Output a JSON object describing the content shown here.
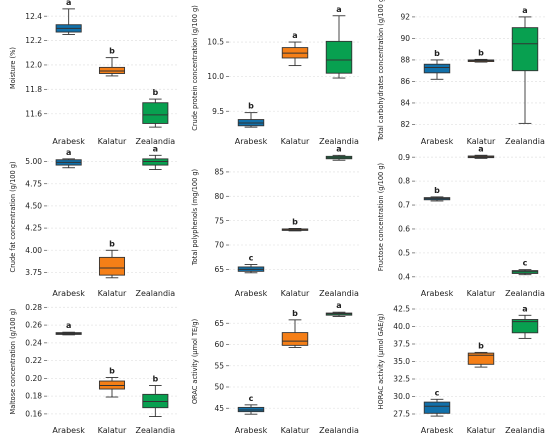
{
  "colors": {
    "Arabesk": "#1170aa",
    "Kalatur": "#f57f17",
    "Zealandia": "#08a050"
  },
  "chart_data": [
    {
      "type": "box",
      "ylabel": "Moisture (%)",
      "ylim": [
        11.45,
        12.5
      ],
      "yticks": [
        11.6,
        11.8,
        12.0,
        12.2,
        12.4
      ],
      "yticklabels": [
        "11.6",
        "11.8",
        "12.0",
        "12.2",
        "12.4"
      ],
      "categories": [
        "Arabesk",
        "Kalatur",
        "Zealandia"
      ],
      "boxes": [
        {
          "min": 12.25,
          "q1": 12.27,
          "median": 12.3,
          "q3": 12.33,
          "max": 12.46,
          "letter": "a"
        },
        {
          "min": 11.91,
          "q1": 11.93,
          "median": 11.95,
          "q3": 11.98,
          "max": 12.06,
          "letter": "b"
        },
        {
          "min": 11.49,
          "q1": 11.52,
          "median": 11.59,
          "q3": 11.69,
          "max": 11.72,
          "letter": "b"
        }
      ]
    },
    {
      "type": "box",
      "ylabel": "Crude protein concentration (g/100 g)",
      "ylim": [
        9.2,
        11.05
      ],
      "yticks": [
        9.5,
        10.0,
        10.5
      ],
      "yticklabels": [
        "9.5",
        "10.0",
        "10.5"
      ],
      "categories": [
        "Arabesk",
        "Kalatur",
        "Zealandia"
      ],
      "boxes": [
        {
          "min": 9.27,
          "q1": 9.29,
          "median": 9.33,
          "q3": 9.38,
          "max": 9.48,
          "letter": "b"
        },
        {
          "min": 10.16,
          "q1": 10.27,
          "median": 10.34,
          "q3": 10.42,
          "max": 10.5,
          "letter": "a"
        },
        {
          "min": 9.98,
          "q1": 10.05,
          "median": 10.24,
          "q3": 10.51,
          "max": 10.88,
          "letter": "a"
        }
      ]
    },
    {
      "type": "box",
      "ylabel": "Total carbohydrates concentration (g/100 g)",
      "ylim": [
        81.3,
        93.2
      ],
      "yticks": [
        82,
        84,
        86,
        88,
        90,
        92
      ],
      "yticklabels": [
        "82",
        "84",
        "86",
        "88",
        "90",
        "92"
      ],
      "categories": [
        "Arabesk",
        "Kalatur",
        "Zealandia"
      ],
      "boxes": [
        {
          "min": 86.2,
          "q1": 86.8,
          "median": 87.3,
          "q3": 87.6,
          "max": 88.0,
          "letter": "b"
        },
        {
          "min": 87.8,
          "q1": 87.85,
          "median": 87.95,
          "q3": 88.0,
          "max": 88.05,
          "letter": "b"
        },
        {
          "min": 82.1,
          "q1": 87.0,
          "median": 89.5,
          "q3": 91.0,
          "max": 92.0,
          "letter": "a"
        }
      ]
    },
    {
      "type": "box",
      "ylabel": "Crude fat concentration (g/100 g)",
      "ylim": [
        3.62,
        5.13
      ],
      "yticks": [
        3.75,
        4.0,
        4.25,
        4.5,
        4.75,
        5.0
      ],
      "yticklabels": [
        "3.75",
        "4.00",
        "4.25",
        "4.50",
        "4.75",
        "5.00"
      ],
      "categories": [
        "Arabesk",
        "Kalatur",
        "Zealandia"
      ],
      "boxes": [
        {
          "min": 4.93,
          "q1": 4.96,
          "median": 4.99,
          "q3": 5.02,
          "max": 5.03,
          "letter": "a"
        },
        {
          "min": 3.69,
          "q1": 3.72,
          "median": 3.8,
          "q3": 3.92,
          "max": 4.0,
          "letter": "b"
        },
        {
          "min": 4.91,
          "q1": 4.96,
          "median": 5.0,
          "q3": 5.03,
          "max": 5.07,
          "letter": "a"
        }
      ]
    },
    {
      "type": "box",
      "ylabel": "Total polyphenols (mg/100 g)",
      "ylim": [
        62.0,
        89.5
      ],
      "yticks": [
        65,
        70,
        75,
        80,
        85
      ],
      "yticklabels": [
        "65",
        "70",
        "75",
        "80",
        "85"
      ],
      "categories": [
        "Arabesk",
        "Kalatur",
        "Zealandia"
      ],
      "boxes": [
        {
          "min": 64.3,
          "q1": 64.6,
          "median": 65.0,
          "q3": 65.5,
          "max": 66.0,
          "letter": "c"
        },
        {
          "min": 72.9,
          "q1": 73.0,
          "median": 73.1,
          "q3": 73.3,
          "max": 73.4,
          "letter": "b"
        },
        {
          "min": 87.4,
          "q1": 87.7,
          "median": 87.9,
          "q3": 88.2,
          "max": 88.4,
          "letter": "a"
        }
      ]
    },
    {
      "type": "box",
      "ylabel": "Fructose concentration (g/100 g)",
      "ylim": [
        0.37,
        0.93
      ],
      "yticks": [
        0.4,
        0.5,
        0.6,
        0.7,
        0.8,
        0.9
      ],
      "yticklabels": [
        "0.4",
        "0.5",
        "0.6",
        "0.7",
        "0.8",
        "0.9"
      ],
      "categories": [
        "Arabesk",
        "Kalatur",
        "Zealandia"
      ],
      "boxes": [
        {
          "min": 0.717,
          "q1": 0.722,
          "median": 0.727,
          "q3": 0.731,
          "max": 0.734,
          "letter": "b"
        },
        {
          "min": 0.895,
          "q1": 0.898,
          "median": 0.901,
          "q3": 0.905,
          "max": 0.908,
          "letter": "a"
        },
        {
          "min": 0.409,
          "q1": 0.414,
          "median": 0.421,
          "q3": 0.426,
          "max": 0.43,
          "letter": "c"
        }
      ]
    },
    {
      "type": "box",
      "ylabel": "Maltose concentration (g/100 g)",
      "ylim": [
        0.152,
        0.286
      ],
      "yticks": [
        0.16,
        0.18,
        0.2,
        0.22,
        0.24,
        0.26,
        0.28
      ],
      "yticklabels": [
        "0.16",
        "0.18",
        "0.20",
        "0.22",
        "0.24",
        "0.26",
        "0.28"
      ],
      "categories": [
        "Arabesk",
        "Kalatur",
        "Zealandia"
      ],
      "boxes": [
        {
          "min": 0.249,
          "q1": 0.2495,
          "median": 0.2505,
          "q3": 0.2515,
          "max": 0.252,
          "letter": "a"
        },
        {
          "min": 0.179,
          "q1": 0.188,
          "median": 0.192,
          "q3": 0.197,
          "max": 0.201,
          "letter": "b"
        },
        {
          "min": 0.157,
          "q1": 0.167,
          "median": 0.174,
          "q3": 0.182,
          "max": 0.192,
          "letter": "b"
        }
      ]
    },
    {
      "type": "box",
      "ylabel": "ORAC activity (μmol TE/g)",
      "ylim": [
        42.0,
        70.0
      ],
      "yticks": [
        45,
        50,
        55,
        60,
        65
      ],
      "yticklabels": [
        "45",
        "50",
        "55",
        "60",
        "65"
      ],
      "categories": [
        "Arabesk",
        "Kalatur",
        "Zealandia"
      ],
      "boxes": [
        {
          "min": 43.6,
          "q1": 44.2,
          "median": 44.6,
          "q3": 45.2,
          "max": 45.8,
          "letter": "c"
        },
        {
          "min": 59.3,
          "q1": 59.8,
          "median": 60.8,
          "q3": 62.8,
          "max": 65.8,
          "letter": "b"
        },
        {
          "min": 66.6,
          "q1": 66.9,
          "median": 67.2,
          "q3": 67.4,
          "max": 67.6,
          "letter": "a"
        }
      ]
    },
    {
      "type": "box",
      "ylabel": "HORAC activity (μmol GAE/g)",
      "ylim": [
        26.5,
        43.5
      ],
      "yticks": [
        27.5,
        30.0,
        32.5,
        35.0,
        37.5,
        40.0,
        42.5
      ],
      "yticklabels": [
        "27.5",
        "30.0",
        "32.5",
        "35.0",
        "37.5",
        "40.0",
        "42.5"
      ],
      "categories": [
        "Arabesk",
        "Kalatur",
        "Zealandia"
      ],
      "boxes": [
        {
          "min": 27.2,
          "q1": 27.6,
          "median": 28.6,
          "q3": 29.2,
          "max": 29.6,
          "letter": "c"
        },
        {
          "min": 34.2,
          "q1": 34.6,
          "median": 35.9,
          "q3": 36.2,
          "max": 36.3,
          "letter": "b"
        },
        {
          "min": 38.3,
          "q1": 39.1,
          "median": 40.7,
          "q3": 41.0,
          "max": 41.6,
          "letter": "a"
        }
      ]
    }
  ]
}
